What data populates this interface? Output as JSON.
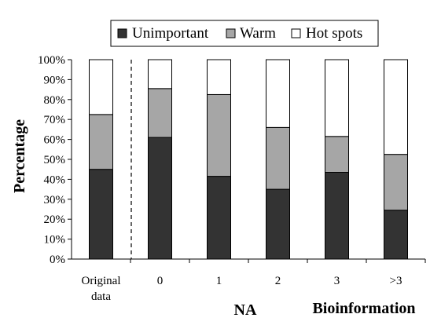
{
  "chart_data": {
    "type": "bar",
    "stacked": true,
    "categories": [
      "Original data",
      "0",
      "1",
      "2",
      "3",
      ">3"
    ],
    "series": [
      {
        "name": "Unimportant",
        "color": "#333333",
        "values": [
          45,
          61,
          41.5,
          35,
          43.5,
          24.5
        ]
      },
      {
        "name": "Warm",
        "color": "#a6a6a6",
        "values": [
          27.5,
          24.5,
          41,
          31,
          18,
          28
        ]
      },
      {
        "name": "Hot spots",
        "color": "#ffffff",
        "values": [
          27.5,
          14.5,
          17.5,
          34,
          38.5,
          47.5
        ]
      }
    ],
    "ylabel": "Percentage",
    "xlabel": "NA",
    "ylim": [
      0,
      100
    ],
    "y_ticks": [
      "0%",
      "10%",
      "20%",
      "30%",
      "40%",
      "50%",
      "60%",
      "70%",
      "80%",
      "90%",
      "100%"
    ],
    "annotation": "Bioinformation",
    "legend": "top",
    "separator_after_category": "Original data",
    "grid": false
  }
}
